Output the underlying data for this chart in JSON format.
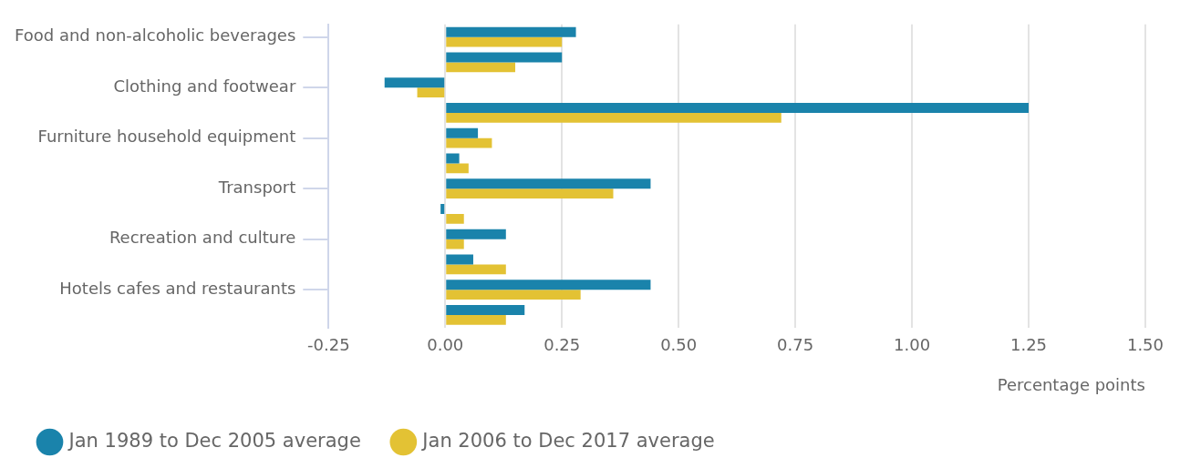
{
  "chart_data": {
    "type": "bar",
    "orientation": "horizontal",
    "categories": [
      "Food and non-alcoholic beverages",
      null,
      "Clothing and footwear",
      null,
      "Furniture household equipment",
      null,
      "Transport",
      null,
      "Recreation and culture",
      null,
      "Hotels cafes and restaurants",
      null
    ],
    "series": [
      {
        "name": "Jan 1989 to Dec 2005 average",
        "color": "#1a83ab",
        "values": [
          0.28,
          0.25,
          -0.13,
          1.25,
          0.07,
          0.03,
          0.44,
          -0.01,
          0.13,
          0.06,
          0.44,
          0.17
        ]
      },
      {
        "name": "Jan 2006 to Dec 2017 average",
        "color": "#e3c234",
        "values": [
          0.25,
          0.15,
          -0.06,
          0.72,
          0.1,
          0.05,
          0.36,
          0.04,
          0.04,
          0.13,
          0.29,
          0.13
        ]
      }
    ],
    "xlabel": "Percentage points",
    "xlim": [
      -0.25,
      1.5
    ],
    "xticks": [
      {
        "value": -0.25,
        "label": "-0.25"
      },
      {
        "value": 0,
        "label": "0.00"
      },
      {
        "value": 0.25,
        "label": "0.25"
      },
      {
        "value": 0.5,
        "label": "0.50"
      },
      {
        "value": 0.75,
        "label": "0.75"
      },
      {
        "value": 1,
        "label": "1.00"
      },
      {
        "value": 1.25,
        "label": "1.25"
      },
      {
        "value": 1.5,
        "label": "1.50"
      }
    ],
    "grid": "x",
    "legend": "bottom left"
  }
}
